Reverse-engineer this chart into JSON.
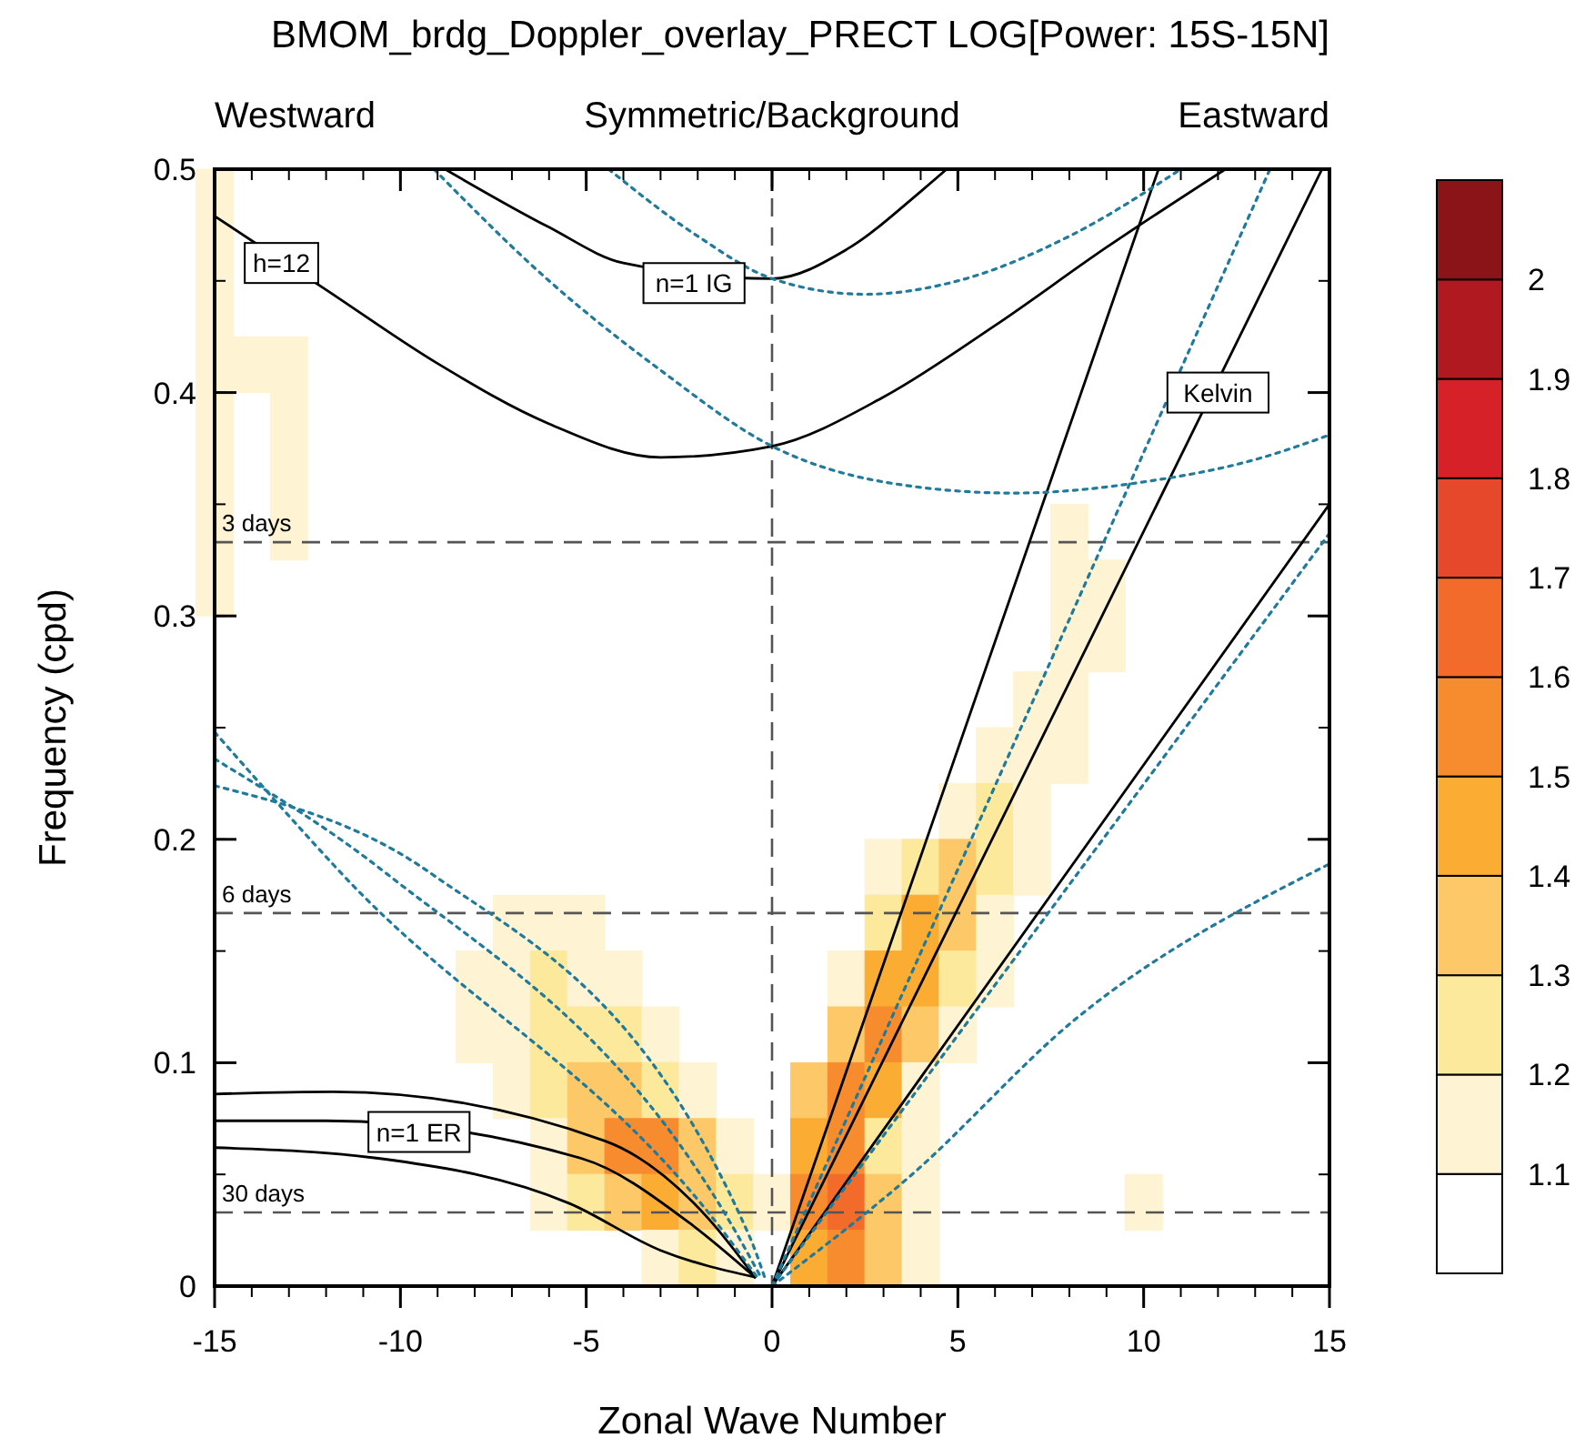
{
  "chart_data": {
    "type": "heatmap",
    "title": "BMOM_brdg_Doppler_overlay_PRECT LOG[Power: 15S-15N]",
    "xlabel": "Zonal Wave Number",
    "ylabel": "Frequency (cpd)",
    "xlim": [
      -15,
      15
    ],
    "ylim": [
      0,
      0.5
    ],
    "xticks": [
      -15,
      -10,
      -5,
      0,
      5,
      10,
      15
    ],
    "yticks": [
      0,
      0.1,
      0.2,
      0.3,
      0.4,
      0.5
    ],
    "clim": [
      1.0,
      2.1
    ],
    "cticks": [
      1.1,
      1.2,
      1.3,
      1.4,
      1.5,
      1.6,
      1.7,
      1.8,
      1.9,
      2
    ],
    "colors": [
      "#ffffff",
      "#fef3d3",
      "#fce99c",
      "#fdc968",
      "#fbac33",
      "#f78c2f",
      "#f36b2a",
      "#e5482b",
      "#d62128",
      "#b0191f",
      "#8b1419"
    ],
    "x": [
      -15,
      -14,
      -13,
      -12,
      -11,
      -10,
      -9,
      -8,
      -7,
      -6,
      -5,
      -4,
      -3,
      -2,
      -1,
      0,
      1,
      2,
      3,
      4,
      5,
      6,
      7,
      8,
      9,
      10,
      11,
      12,
      13,
      14,
      15
    ],
    "y": [
      0.4875,
      0.4625,
      0.4375,
      0.4125,
      0.3875,
      0.3625,
      0.3375,
      0.3125,
      0.2875,
      0.2625,
      0.2375,
      0.2125,
      0.1875,
      0.1625,
      0.1375,
      0.1125,
      0.0875,
      0.0625,
      0.0375,
      0.0125
    ],
    "cells": [
      [
        1.15,
        null,
        null,
        null,
        null,
        null,
        null,
        null,
        null,
        null,
        null,
        null,
        null,
        null,
        null,
        null,
        null,
        null,
        null,
        null,
        null,
        null,
        null,
        null,
        null,
        null,
        null,
        null,
        null,
        null,
        null
      ],
      [
        1.15,
        null,
        null,
        null,
        null,
        null,
        null,
        null,
        null,
        null,
        null,
        null,
        null,
        null,
        null,
        null,
        null,
        null,
        null,
        null,
        null,
        null,
        null,
        null,
        null,
        null,
        null,
        null,
        null,
        null,
        null
      ],
      [
        1.15,
        null,
        null,
        null,
        null,
        null,
        null,
        null,
        null,
        null,
        null,
        null,
        null,
        null,
        null,
        null,
        null,
        null,
        null,
        null,
        null,
        null,
        null,
        null,
        null,
        null,
        null,
        null,
        null,
        null,
        null
      ],
      [
        1.15,
        1.15,
        1.15,
        null,
        null,
        null,
        null,
        null,
        null,
        null,
        null,
        null,
        null,
        null,
        null,
        null,
        null,
        null,
        null,
        null,
        null,
        null,
        null,
        null,
        null,
        null,
        null,
        null,
        null,
        null,
        null
      ],
      [
        1.15,
        null,
        1.15,
        null,
        null,
        null,
        null,
        null,
        null,
        null,
        null,
        null,
        null,
        null,
        null,
        null,
        null,
        null,
        null,
        null,
        null,
        null,
        null,
        null,
        null,
        null,
        null,
        null,
        null,
        null,
        null
      ],
      [
        1.15,
        null,
        1.15,
        null,
        null,
        null,
        null,
        null,
        null,
        null,
        null,
        null,
        null,
        null,
        null,
        null,
        null,
        null,
        null,
        null,
        null,
        null,
        null,
        null,
        null,
        null,
        null,
        null,
        null,
        null,
        null
      ],
      [
        1.15,
        null,
        1.15,
        null,
        null,
        null,
        null,
        null,
        null,
        null,
        null,
        null,
        null,
        null,
        null,
        null,
        null,
        null,
        null,
        null,
        null,
        null,
        null,
        1.15,
        null,
        null,
        null,
        null,
        null,
        null,
        null
      ],
      [
        1.15,
        null,
        null,
        null,
        null,
        null,
        null,
        null,
        null,
        null,
        null,
        null,
        null,
        null,
        null,
        null,
        null,
        null,
        null,
        null,
        null,
        null,
        null,
        1.15,
        1.15,
        null,
        null,
        null,
        null,
        null,
        null
      ],
      [
        null,
        null,
        null,
        null,
        null,
        null,
        null,
        null,
        null,
        null,
        null,
        null,
        null,
        null,
        null,
        null,
        null,
        null,
        null,
        null,
        null,
        null,
        null,
        1.15,
        1.15,
        null,
        null,
        null,
        null,
        null,
        null
      ],
      [
        null,
        null,
        null,
        null,
        null,
        null,
        null,
        null,
        null,
        null,
        null,
        null,
        null,
        null,
        null,
        null,
        null,
        null,
        null,
        null,
        null,
        null,
        1.15,
        1.15,
        null,
        null,
        null,
        null,
        null,
        null,
        null
      ],
      [
        null,
        null,
        null,
        null,
        null,
        null,
        null,
        null,
        null,
        null,
        null,
        null,
        null,
        null,
        null,
        null,
        null,
        null,
        null,
        null,
        null,
        1.15,
        1.15,
        1.15,
        null,
        null,
        null,
        null,
        null,
        null,
        null
      ],
      [
        null,
        null,
        null,
        null,
        null,
        null,
        null,
        null,
        null,
        null,
        null,
        null,
        null,
        null,
        null,
        null,
        null,
        null,
        null,
        null,
        1.15,
        1.25,
        1.15,
        null,
        null,
        null,
        null,
        null,
        null,
        null,
        null
      ],
      [
        null,
        null,
        null,
        null,
        null,
        null,
        null,
        null,
        null,
        null,
        null,
        null,
        null,
        null,
        null,
        null,
        null,
        null,
        1.15,
        1.25,
        1.35,
        1.25,
        1.15,
        null,
        null,
        null,
        null,
        null,
        null,
        null,
        null
      ],
      [
        null,
        null,
        null,
        null,
        null,
        null,
        null,
        null,
        1.15,
        1.15,
        1.15,
        null,
        null,
        null,
        null,
        null,
        null,
        null,
        1.25,
        1.45,
        1.35,
        1.15,
        null,
        null,
        null,
        null,
        null,
        null,
        null,
        null,
        null
      ],
      [
        null,
        null,
        null,
        null,
        null,
        null,
        null,
        1.15,
        1.15,
        1.25,
        1.15,
        1.15,
        null,
        null,
        null,
        null,
        null,
        1.15,
        1.45,
        1.45,
        1.25,
        1.15,
        null,
        null,
        null,
        null,
        null,
        null,
        null,
        null,
        null
      ],
      [
        null,
        null,
        null,
        null,
        null,
        null,
        null,
        1.15,
        1.15,
        1.25,
        1.25,
        1.25,
        1.15,
        null,
        null,
        null,
        null,
        1.35,
        1.55,
        1.35,
        1.15,
        null,
        null,
        null,
        null,
        null,
        null,
        null,
        null,
        null,
        null
      ],
      [
        null,
        null,
        null,
        null,
        null,
        null,
        null,
        null,
        1.15,
        1.25,
        1.35,
        1.35,
        1.25,
        1.15,
        null,
        null,
        1.35,
        1.55,
        1.45,
        1.15,
        null,
        null,
        null,
        null,
        null,
        null,
        null,
        null,
        null,
        null,
        null
      ],
      [
        null,
        null,
        null,
        null,
        null,
        null,
        null,
        null,
        null,
        1.15,
        1.35,
        1.55,
        1.55,
        1.35,
        1.15,
        null,
        1.45,
        1.55,
        1.25,
        1.15,
        null,
        null,
        null,
        null,
        null,
        null,
        null,
        null,
        null,
        null,
        null
      ],
      [
        null,
        null,
        null,
        null,
        null,
        null,
        null,
        null,
        null,
        1.15,
        1.25,
        1.35,
        1.45,
        1.35,
        1.25,
        1.15,
        1.55,
        1.65,
        1.35,
        1.15,
        null,
        null,
        null,
        null,
        null,
        1.15,
        null,
        null,
        null,
        null,
        null
      ],
      [
        null,
        null,
        null,
        null,
        null,
        null,
        null,
        null,
        null,
        null,
        null,
        null,
        1.15,
        1.25,
        1.15,
        null,
        1.45,
        1.55,
        1.35,
        1.15,
        null,
        null,
        null,
        null,
        null,
        null,
        null,
        null,
        null,
        null,
        null
      ]
    ],
    "series": [
      {
        "type": "line",
        "color": "#000000",
        "line_style": "solid",
        "x": [
          0,
          10.4
        ],
        "values": [
          0,
          0.5
        ]
      },
      {
        "type": "line",
        "color": "#000000",
        "line_style": "solid",
        "x": [
          0,
          14.8
        ],
        "values": [
          0,
          0.5
        ]
      },
      {
        "type": "line",
        "color": "#000000",
        "line_style": "solid",
        "x": [
          0,
          15
        ],
        "values": [
          0,
          0.35
        ]
      },
      {
        "type": "line",
        "color": "#000000",
        "line_style": "solid",
        "x": [
          -15,
          -12,
          -9,
          -6,
          -3,
          0,
          3,
          6,
          9,
          12.2
        ],
        "values": [
          0.479,
          0.446,
          0.413,
          0.386,
          0.371,
          0.376,
          0.398,
          0.43,
          0.465,
          0.5
        ]
      },
      {
        "type": "line",
        "color": "#000000",
        "line_style": "solid",
        "x": [
          -8.8,
          -6,
          -4,
          0,
          2,
          4,
          4.7
        ],
        "values": [
          0.5,
          0.474,
          0.458,
          0.451,
          0.464,
          0.49,
          0.5
        ]
      },
      {
        "type": "line",
        "color": "#000000",
        "line_style": "solid",
        "x": [
          -15,
          -11.8,
          -4.5,
          -1.7,
          -0.46
        ],
        "values": [
          0.086,
          0.087,
          0.065,
          0.03,
          0.004
        ]
      },
      {
        "type": "line",
        "color": "#000000",
        "line_style": "solid",
        "x": [
          -15,
          -12,
          -5.1,
          -2.2,
          -0.46
        ],
        "values": [
          0.074,
          0.074,
          0.057,
          0.028,
          0.004
        ]
      },
      {
        "type": "line",
        "color": "#000000",
        "line_style": "solid",
        "x": [
          -15,
          -10.5,
          -5.45,
          -3,
          -0.46
        ],
        "values": [
          0.062,
          0.057,
          0.037,
          0.016,
          0.004
        ]
      },
      {
        "type": "line",
        "color": "#1f7a9c",
        "line_style": "dotted",
        "x": [
          -15,
          -11.6,
          -1.2,
          -0.4
        ],
        "values": [
          0.248,
          0.185,
          0.022,
          0.004
        ]
      },
      {
        "type": "line",
        "color": "#1f7a9c",
        "line_style": "dotted",
        "x": [
          -15,
          -10.4,
          -0.9,
          -0.3
        ],
        "values": [
          0.236,
          0.185,
          0.022,
          0.004
        ]
      },
      {
        "type": "line",
        "color": "#1f7a9c",
        "line_style": "dotted",
        "x": [
          -15,
          -9.2,
          -0.6,
          -0.2
        ],
        "values": [
          0.224,
          0.185,
          0.022,
          0.004
        ]
      },
      {
        "type": "line",
        "color": "#1f7a9c",
        "line_style": "dotted",
        "x": [
          0,
          13.4
        ],
        "values": [
          0,
          0.5
        ]
      },
      {
        "type": "line",
        "color": "#1f7a9c",
        "line_style": "dotted",
        "x": [
          0,
          15
        ],
        "values": [
          0,
          0.337
        ]
      },
      {
        "type": "line",
        "color": "#1f7a9c",
        "line_style": "dotted",
        "x": [
          0,
          3.7,
          8.2,
          15
        ],
        "values": [
          0,
          0.049,
          0.12,
          0.189
        ]
      },
      {
        "type": "line",
        "color": "#1f7a9c",
        "line_style": "dotted",
        "x": [
          -9.1,
          -6,
          -3,
          0,
          3,
          6.5,
          10,
          13,
          15
        ],
        "values": [
          0.5,
          0.45,
          0.41,
          0.376,
          0.36,
          0.355,
          0.36,
          0.37,
          0.381
        ]
      },
      {
        "type": "line",
        "color": "#1f7a9c",
        "line_style": "dotted",
        "x": [
          -4.4,
          -2,
          0,
          2.5,
          5,
          8,
          11
        ],
        "values": [
          0.5,
          0.47,
          0.451,
          0.444,
          0.45,
          0.47,
          0.5
        ]
      }
    ],
    "ref_lines": [
      {
        "axis": "y",
        "value": 0.333,
        "label": "3 days"
      },
      {
        "axis": "y",
        "value": 0.167,
        "label": "6 days"
      },
      {
        "axis": "y",
        "value": 0.033,
        "label": "30 days"
      },
      {
        "axis": "x",
        "value": 0
      }
    ],
    "annotations": [
      "Westward",
      "Symmetric/Background",
      "Eastward",
      {
        "text": "h=12",
        "x": -13.2,
        "y": 0.458
      },
      {
        "text": "n=1 IG",
        "x": -2.1,
        "y": 0.449
      },
      {
        "text": "Kelvin",
        "x": 12,
        "y": 0.4
      },
      {
        "text": "n=1 ER",
        "x": -9.5,
        "y": 0.069
      }
    ],
    "grid": false
  }
}
